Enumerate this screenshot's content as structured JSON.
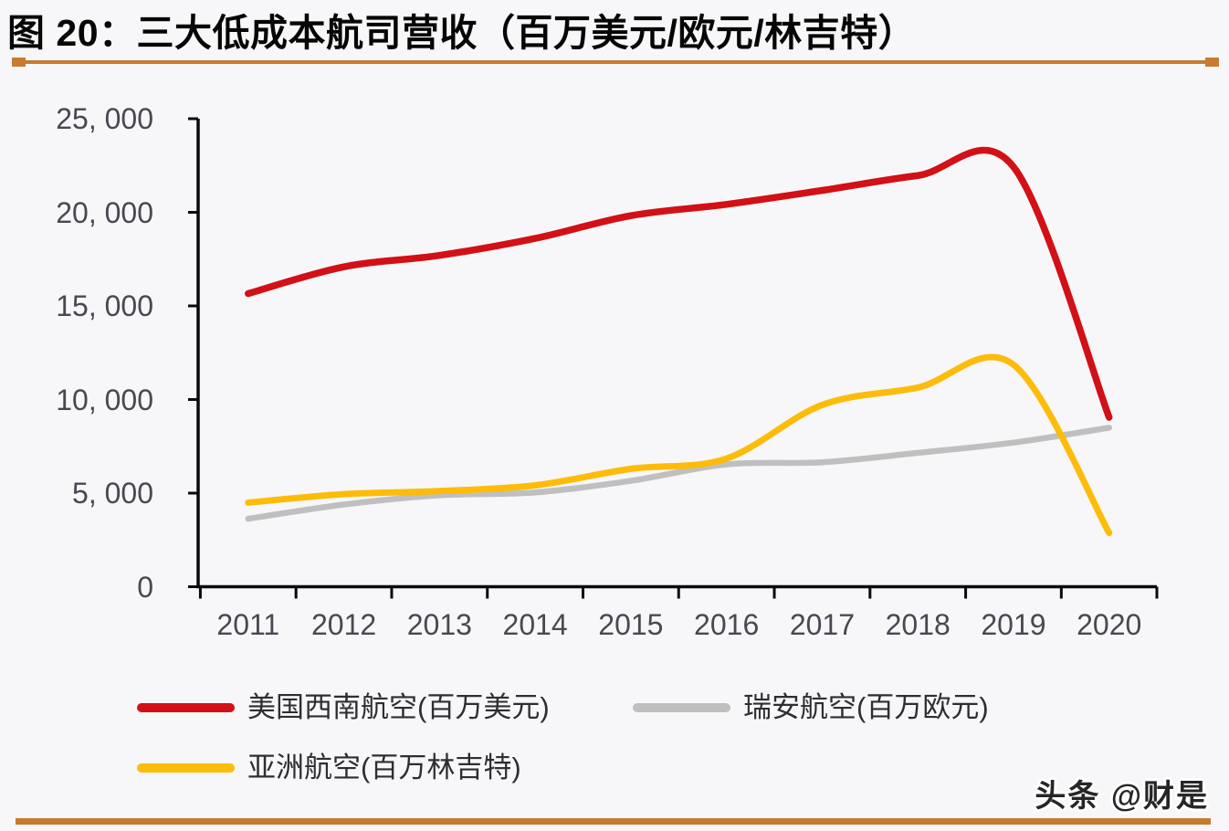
{
  "header": {
    "title": "图 20：三大低成本航司营收（百万美元/欧元/林吉特）",
    "accent_color": "#c87b31"
  },
  "footer": {
    "watermark": "头条 @财是"
  },
  "chart_data": {
    "type": "line",
    "title": "三大低成本航司营收（百万美元/欧元/林吉特）",
    "xlabel": "",
    "ylabel": "",
    "x": [
      "2011",
      "2012",
      "2013",
      "2014",
      "2015",
      "2016",
      "2017",
      "2018",
      "2019",
      "2020"
    ],
    "ylim": [
      0,
      25000
    ],
    "y_ticks": [
      0,
      5000,
      10000,
      15000,
      20000,
      25000
    ],
    "y_tick_labels": [
      "0",
      "5, 000",
      "10, 000",
      "15, 000",
      "20, 000",
      "25, 000"
    ],
    "grid": false,
    "smooth": true,
    "legend_position": "bottom",
    "axis_color": "#0a0a0a",
    "series": [
      {
        "name": "美国西南航空(百万美元)",
        "slug": "southwest-airlines",
        "color": "#d21015",
        "stroke_width": 7.5,
        "values": [
          15658,
          17088,
          17699,
          18605,
          19820,
          20425,
          21171,
          21965,
          22428,
          9048
        ]
      },
      {
        "name": "瑞安航空(百万欧元)",
        "slug": "ryanair",
        "color": "#bfbfbf",
        "stroke_width": 6.5,
        "values": [
          3630,
          4390,
          4884,
          5037,
          5654,
          6536,
          6648,
          7151,
          7697,
          8495
        ]
      },
      {
        "name": "亚洲航空(百万林吉特)",
        "slug": "airasia",
        "color": "#fdbc0a",
        "stroke_width": 7,
        "values": [
          4495,
          4946,
          5112,
          5416,
          6298,
          6846,
          9710,
          10638,
          11860,
          2875
        ]
      }
    ]
  }
}
